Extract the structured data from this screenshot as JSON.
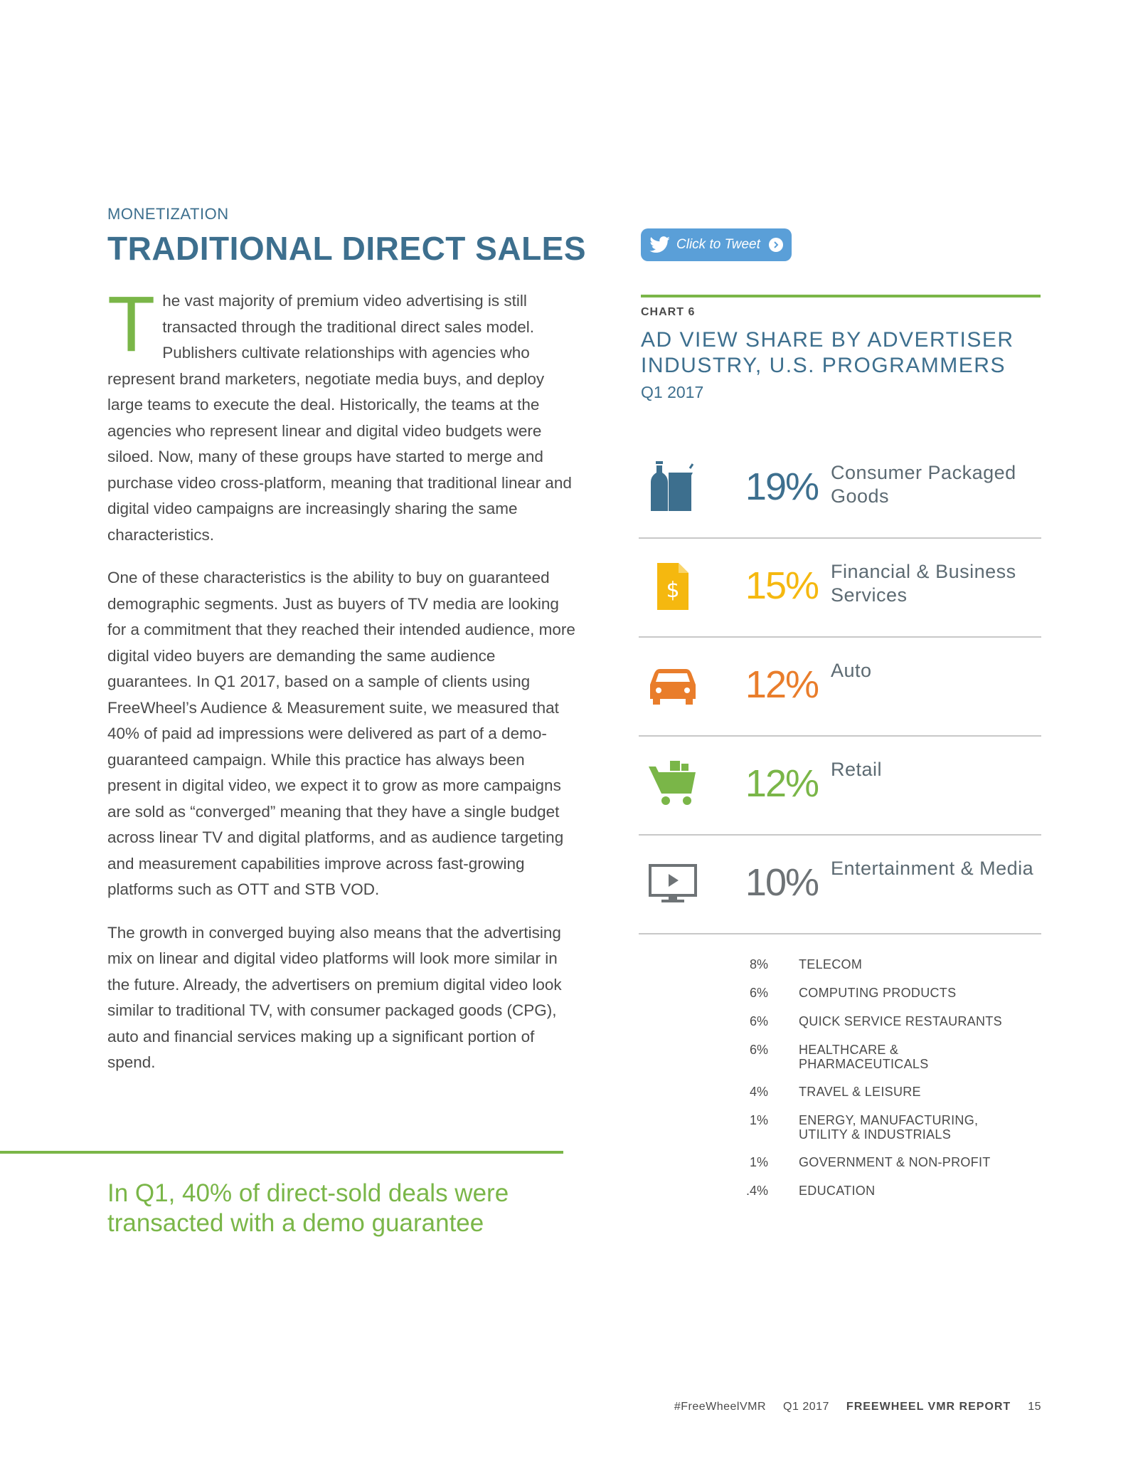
{
  "header": {
    "section": "MONETIZATION",
    "title": "TRADITIONAL DIRECT SALES"
  },
  "tweet_button": {
    "label": "Click to Tweet",
    "icon": "twitter-bird-icon"
  },
  "article": {
    "drop_cap": "T",
    "p1_rest": "he vast majority of premium video advertising is still transacted through the traditional direct sales model. Publishers cultivate relationships with agencies who represent brand marketers, negotiate media buys, and deploy large teams to execute the deal. Historically, the teams at the agencies who represent linear and digital video budgets were siloed. Now, many of these groups have started to merge and purchase video cross-platform, meaning that traditional linear and digital video campaigns are increasingly sharing the same characteristics.",
    "p2": "One of these characteristics is the ability to buy on guaranteed demographic segments. Just as buyers of TV media are looking for a commitment that they reached their intended audience, more digital video buyers are demanding the same audience guarantees. In Q1 2017, based on a sample of clients using FreeWheel’s Audience & Measurement suite, we measured that 40% of paid ad impressions were delivered as part of a demo-guaranteed campaign. While this practice has always been present in digital video, we expect it to grow as more campaigns are sold as “converged” meaning that they have a single budget across linear TV and digital platforms, and as audience targeting and measurement capabilities improve across fast-growing platforms such as OTT and STB VOD.",
    "p3": "The growth in converged buying also means that the advertising mix on linear and digital video platforms will look more similar in the future. Already, the advertisers on premium digital video look similar to traditional TV, with consumer packaged goods (CPG), auto and financial services making up a significant portion of spend."
  },
  "pullquote": "In Q1, 40% of direct-sold deals were transacted with a demo guarantee",
  "chart": {
    "label": "CHART 6",
    "title": "AD VIEW SHARE BY ADVERTISER INDUSTRY, U.S. PROGRAMMERS",
    "subtitle": "Q1 2017"
  },
  "chart_data": {
    "type": "table",
    "title": "AD VIEW SHARE BY ADVERTISER INDUSTRY, U.S. PROGRAMMERS",
    "subtitle": "Q1 2017",
    "major": [
      {
        "name": "Consumer Packaged Goods",
        "value": "19%",
        "color": "#3d6f8e",
        "icon": "bottle-jar-icon"
      },
      {
        "name": "Financial & Business Services",
        "value": "15%",
        "color": "#f5b80f",
        "icon": "dollar-document-icon"
      },
      {
        "name": "Auto",
        "value": "12%",
        "color": "#e97d2b",
        "icon": "car-icon"
      },
      {
        "name": "Retail",
        "value": "12%",
        "color": "#7ab648",
        "icon": "shopping-cart-icon"
      },
      {
        "name": "Entertainment & Media",
        "value": "10%",
        "color": "#6e7376",
        "icon": "video-screen-icon"
      }
    ],
    "minor": [
      {
        "value": "8%",
        "name": "TELECOM"
      },
      {
        "value": "6%",
        "name": "COMPUTING PRODUCTS"
      },
      {
        "value": "6%",
        "name": "QUICK SERVICE RESTAURANTS"
      },
      {
        "value": "6%",
        "name": "HEALTHCARE & PHARMACEUTICALS"
      },
      {
        "value": "4%",
        "name": "TRAVEL & LEISURE"
      },
      {
        "value": "1%",
        "name": "ENERGY, MANUFACTURING, UTILITY & INDUSTRIALS"
      },
      {
        "value": "1%",
        "name": "GOVERNMENT & NON-PROFIT"
      },
      {
        "value": ".4%",
        "name": "EDUCATION"
      }
    ]
  },
  "footer": {
    "hashtag": "#FreeWheelVMR",
    "period": "Q1 2017",
    "report": "FREEWHEEL VMR REPORT",
    "page": "15"
  }
}
